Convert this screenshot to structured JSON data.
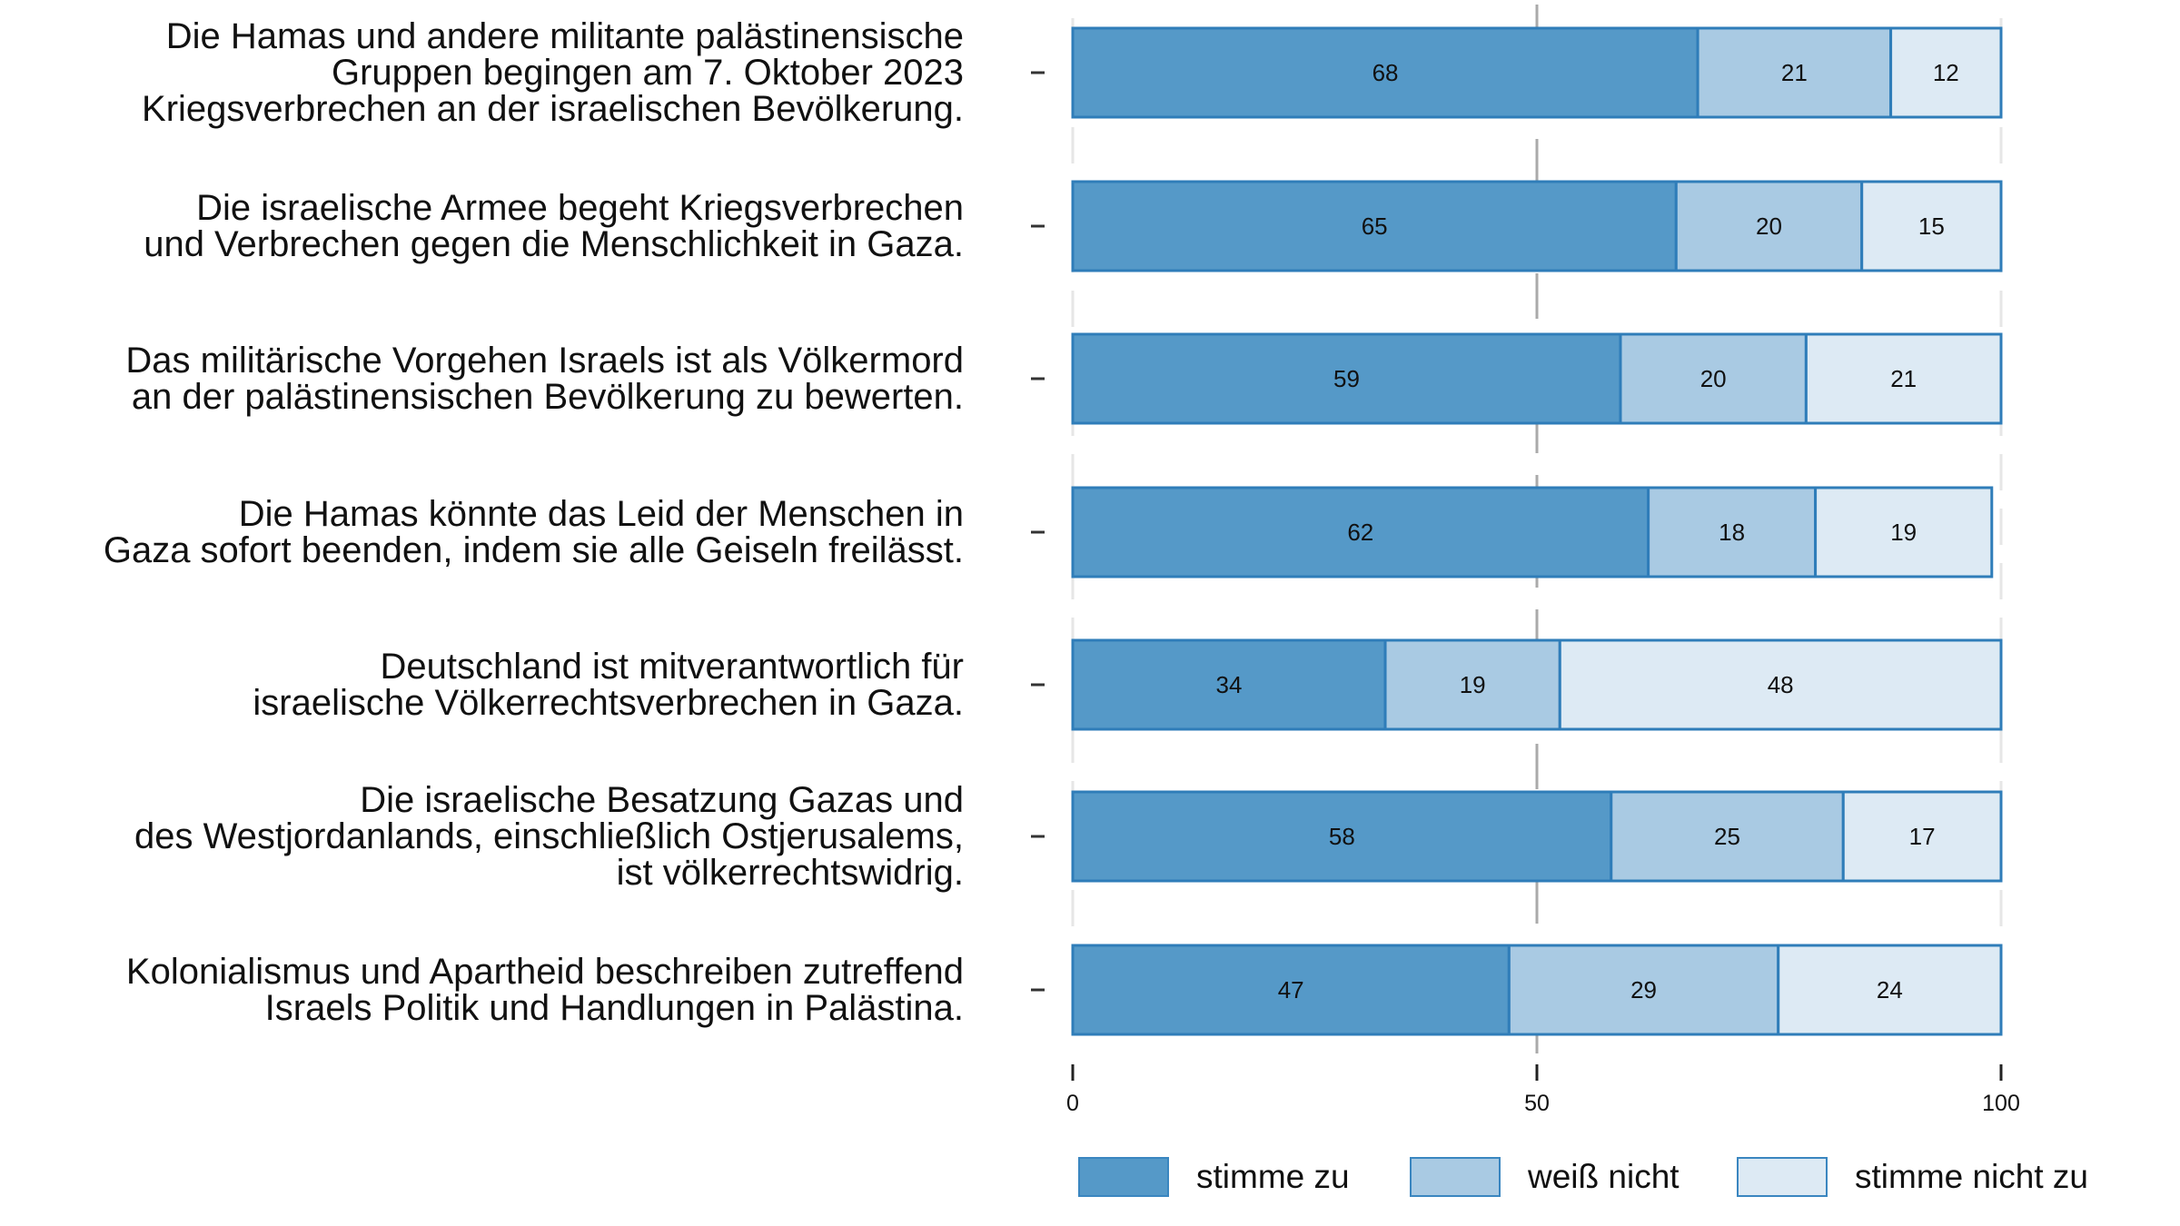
{
  "chart_data": {
    "type": "bar",
    "orientation": "horizontal",
    "stacked": true,
    "categories": [
      "Die Hamas und andere militante palästinensische\nGruppen begingen am 7. Oktober 2023\nKriegsverbrechen an der israelischen Bevölkerung.",
      "Die israelische Armee begeht Kriegsverbrechen\nund Verbrechen gegen die Menschlichkeit in Gaza.",
      "Das militärische Vorgehen Israels ist als Völkermord\nan der palästinensischen Bevölkerung zu bewerten.",
      "Die Hamas könnte das Leid der Menschen in\nGaza sofort beenden, indem sie alle Geiseln freilässt.",
      "Deutschland ist mitverantwortlich für\nisraelische Völkerrechtsverbrechen in Gaza.",
      "Die israelische Besatzung Gazas und\ndes Westjordanlands, einschließlich Ostjerusalems,\nist völkerrechtswidrig.",
      "Kolonialismus und Apartheid beschreiben zutreffend\nIsraels Politik und Handlungen in Palästina."
    ],
    "series": [
      {
        "name": "stimme zu",
        "color": "#5599c8",
        "values": [
          68,
          65,
          59,
          62,
          34,
          58,
          47
        ]
      },
      {
        "name": "weiß nicht",
        "color": "#a9cae3",
        "values": [
          21,
          20,
          20,
          18,
          19,
          25,
          29
        ]
      },
      {
        "name": "stimme nicht zu",
        "color": "#ddeaf4",
        "values": [
          12,
          15,
          21,
          19,
          48,
          17,
          24
        ]
      }
    ],
    "xlim": [
      0,
      100
    ],
    "xticks": [
      "0",
      "50",
      "100"
    ],
    "reference_line": 50,
    "legend_position": "bottom",
    "bar_border_color": "#2f7db9"
  }
}
